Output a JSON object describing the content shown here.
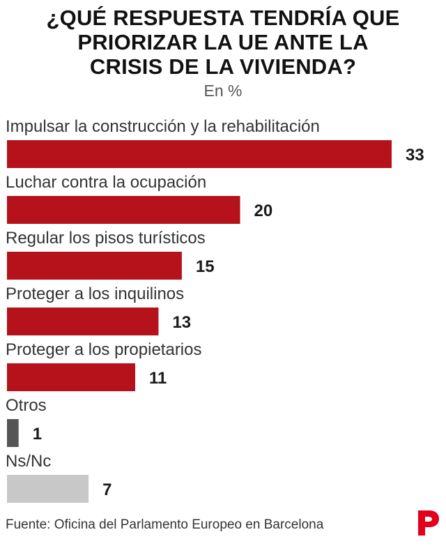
{
  "title": "¿QUÉ RESPUESTA TENDRÍA QUE\nPRIORIZAR LA UE ANTE LA\nCRISIS DE LA VIVIENDA?",
  "subtitle": "En %",
  "source": "Fuente: Oficina del Parlamento Europeo en Barcelona",
  "logo_icon": "publication-logo-icon",
  "colors": {
    "main": "#b5121b",
    "other": "#555555",
    "nsnc": "#c8c8c8",
    "text": "#1a1a1a"
  },
  "chart_data": {
    "type": "bar",
    "orientation": "horizontal",
    "title": "¿QUÉ RESPUESTA TENDRÍA QUE PRIORIZAR LA UE ANTE LA CRISIS DE LA VIVIENDA?",
    "subtitle": "En %",
    "categories": [
      "Impulsar la construcción y la rehabilitación",
      "Luchar contra la ocupación",
      "Regular los pisos turísticos",
      "Proteger a los inquilinos",
      "Proteger a los propietarios",
      "Otros",
      "Ns/Nc"
    ],
    "values": [
      33,
      20,
      15,
      13,
      11,
      1,
      7
    ],
    "bar_colors": [
      "#b5121b",
      "#b5121b",
      "#b5121b",
      "#b5121b",
      "#b5121b",
      "#555555",
      "#c8c8c8"
    ],
    "xlim": [
      0,
      33
    ],
    "grid": false,
    "legend": "none",
    "data_labels": true
  }
}
